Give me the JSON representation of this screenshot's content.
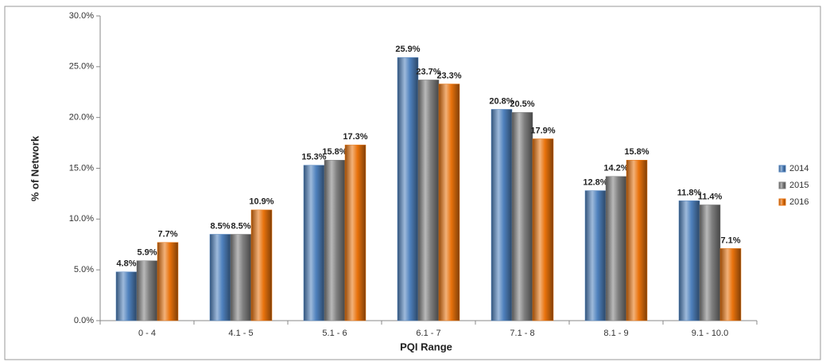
{
  "chart_data": {
    "type": "bar",
    "x_label": "PQI Range",
    "y_label": "% of Network",
    "categories": [
      "0 - 4",
      "4.1 - 5",
      "5.1 - 6",
      "6.1 - 7",
      "7.1 - 8",
      "8.1 - 9",
      "9.1 - 10.0"
    ],
    "series": [
      {
        "name": "2014",
        "color": "#4f81bd",
        "values": [
          4.8,
          8.5,
          15.3,
          25.9,
          20.8,
          12.8,
          11.8
        ],
        "value_labels": [
          "4.8%",
          "8.5%",
          "15.3%",
          "25.9%",
          "20.8%",
          "12.8%",
          "11.8%"
        ]
      },
      {
        "name": "2015",
        "color": "#7f7f7f",
        "values": [
          5.9,
          8.5,
          15.8,
          23.7,
          20.5,
          14.2,
          11.4
        ],
        "value_labels": [
          "5.9%",
          "8.5%",
          "15.8%",
          "23.7%",
          "20.5%",
          "14.2%",
          "11.4%"
        ]
      },
      {
        "name": "2016",
        "color": "#e8720c",
        "values": [
          7.7,
          10.9,
          17.3,
          23.3,
          17.9,
          15.8,
          7.1
        ],
        "value_labels": [
          "7.7%",
          "10.9%",
          "17.3%",
          "23.3%",
          "17.9%",
          "15.8%",
          "7.1%"
        ]
      }
    ],
    "ylim": [
      0,
      30
    ],
    "yticks": [
      {
        "value": 0,
        "label": "0.0%"
      },
      {
        "value": 5,
        "label": "5.0%"
      },
      {
        "value": 10,
        "label": "10.0%"
      },
      {
        "value": 15,
        "label": "15.0%"
      },
      {
        "value": 20,
        "label": "20.0%"
      },
      {
        "value": 25,
        "label": "25.0%"
      },
      {
        "value": 30,
        "label": "30.0%"
      }
    ],
    "grid": false,
    "legend": "right"
  }
}
